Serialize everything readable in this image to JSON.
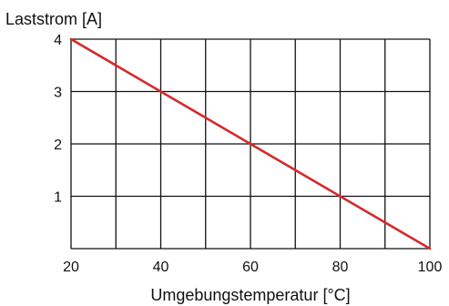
{
  "chart_data": {
    "type": "line",
    "title": "",
    "ylabel": "Laststrom [A]",
    "xlabel": "Umgebungstemperatur [°C]",
    "xlim": [
      20,
      100
    ],
    "ylim": [
      0,
      4
    ],
    "x_ticks": [
      20,
      40,
      60,
      80,
      100
    ],
    "y_ticks": [
      1,
      2,
      3,
      4
    ],
    "x_gridlines": [
      20,
      30,
      40,
      50,
      60,
      70,
      80,
      90,
      100
    ],
    "y_gridlines": [
      0,
      1,
      2,
      3,
      4
    ],
    "grid": true,
    "legend": "none",
    "series": [
      {
        "color": "#d42a2a",
        "x": [
          20,
          100
        ],
        "y": [
          4,
          0
        ]
      }
    ]
  }
}
